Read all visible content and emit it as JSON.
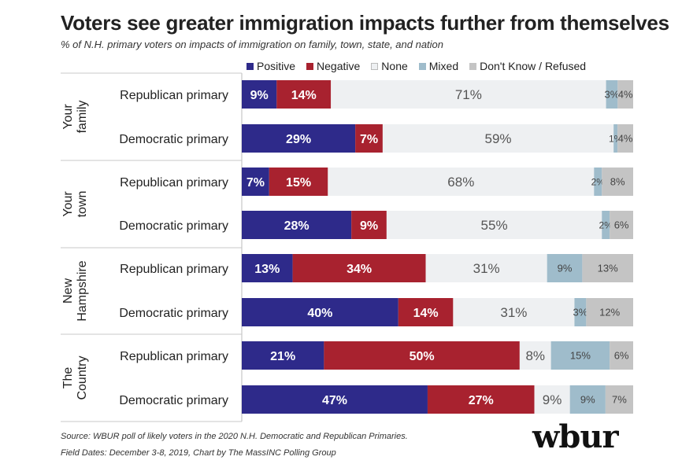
{
  "title": "Voters see greater immigration impacts further from themselves",
  "subtitle": "% of N.H. primary voters on impacts of immigration on family, town, state, and nation",
  "source": "Source: WBUR poll of likely voters in the 2020 N.H. Democratic and Republican Primaries.",
  "field_dates": "Field Dates: December 3-8, 2019, Chart by The MassINC Polling Group",
  "logo": "wbur",
  "colors": {
    "Positive": "#2e2a8a",
    "Negative": "#a8222f",
    "None": "#eef0f2",
    "Mixed": "#9fbccb",
    "Don't Know / Refused": "#c4c4c4"
  },
  "chart_data": {
    "type": "bar",
    "orientation": "horizontal-stacked-100",
    "legend_position": "top",
    "categories_legend": [
      "Positive",
      "Negative",
      "None",
      "Mixed",
      "Don't Know / Refused"
    ],
    "groups": [
      {
        "name": [
          "Your",
          "family"
        ],
        "rows": [
          {
            "label": "Republican primary",
            "values": [
              9,
              14,
              71,
              3,
              4
            ],
            "labels": [
              "9%",
              "14%",
              "71%",
              "3%",
              "4%"
            ]
          },
          {
            "label": "Democratic primary",
            "values": [
              29,
              7,
              59,
              1,
              4
            ],
            "labels": [
              "29%",
              "7%",
              "59%",
              "1%",
              "4%"
            ]
          }
        ]
      },
      {
        "name": [
          "Your",
          "town"
        ],
        "rows": [
          {
            "label": "Republican primary",
            "values": [
              7,
              15,
              68,
              2,
              8
            ],
            "labels": [
              "7%",
              "15%",
              "68%",
              "2%",
              "8%"
            ]
          },
          {
            "label": "Democratic primary",
            "values": [
              28,
              9,
              55,
              2,
              6
            ],
            "labels": [
              "28%",
              "9%",
              "55%",
              "2%",
              "6%"
            ]
          }
        ]
      },
      {
        "name": [
          "New",
          "Hampshire"
        ],
        "rows": [
          {
            "label": "Republican primary",
            "values": [
              13,
              34,
              31,
              9,
              13
            ],
            "labels": [
              "13%",
              "34%",
              "31%",
              "9%",
              "13%"
            ]
          },
          {
            "label": "Democratic primary",
            "values": [
              40,
              14,
              31,
              3,
              12
            ],
            "labels": [
              "40%",
              "14%",
              "31%",
              "3%",
              "12%"
            ]
          }
        ]
      },
      {
        "name": [
          "The",
          "Country"
        ],
        "rows": [
          {
            "label": "Republican primary",
            "values": [
              21,
              50,
              8,
              15,
              6
            ],
            "labels": [
              "21%",
              "50%",
              "8%",
              "15%",
              "6%"
            ]
          },
          {
            "label": "Democratic primary",
            "values": [
              47,
              27,
              9,
              9,
              7
            ],
            "labels": [
              "47%",
              "27%",
              "9%",
              "9%",
              "7%"
            ]
          }
        ]
      }
    ]
  }
}
